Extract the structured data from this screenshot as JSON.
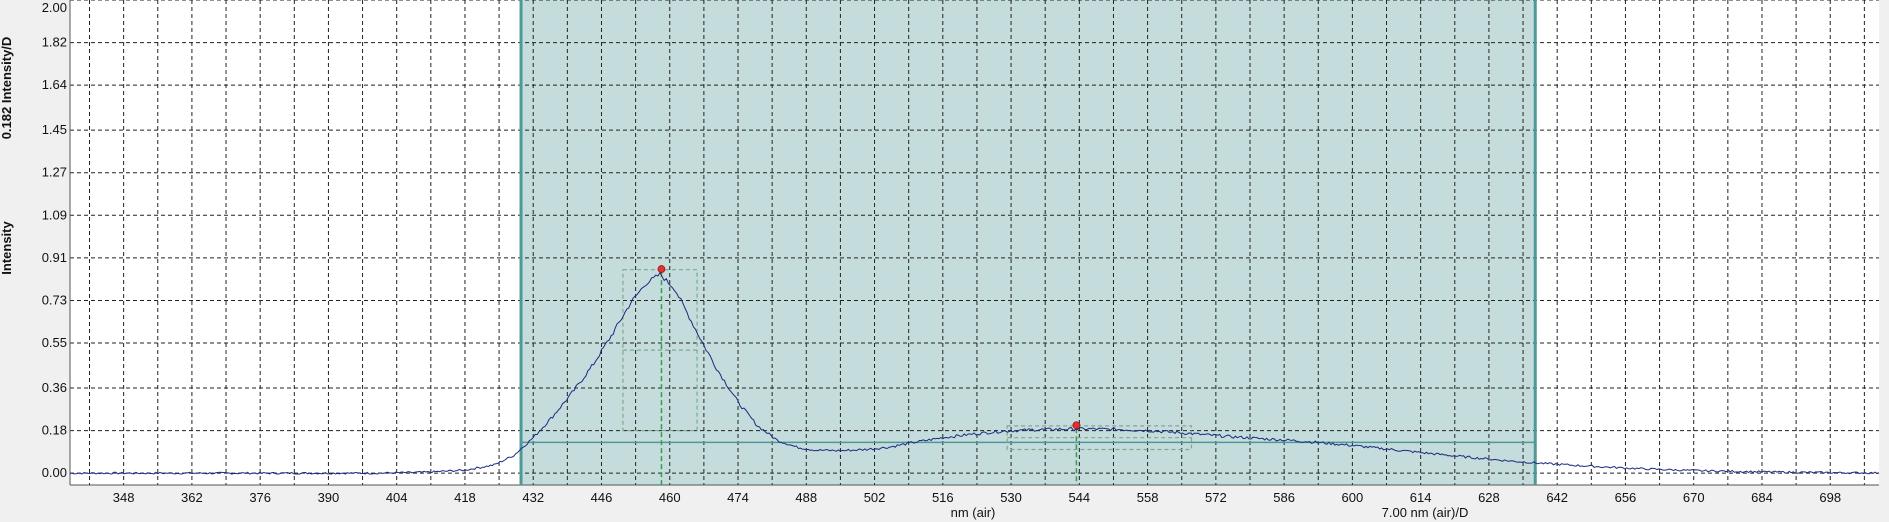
{
  "chart_data": {
    "type": "line",
    "ylabel_left": "Intensity",
    "ylabel_right": "0.182 Intensity/D",
    "xlabel": "nm (air)",
    "xlabel_scale": "7.00 nm (air)/D",
    "xlim": [
      337,
      708
    ],
    "ylim": [
      -0.05,
      2.0
    ],
    "y_ticks": [
      "2.00",
      "1.82",
      "1.64",
      "1.45",
      "1.27",
      "1.09",
      "0.91",
      "0.73",
      "0.55",
      "0.36",
      "0.18",
      "0.00"
    ],
    "y_tick_values": [
      2.0,
      1.82,
      1.64,
      1.45,
      1.27,
      1.09,
      0.91,
      0.73,
      0.55,
      0.36,
      0.18,
      0.0
    ],
    "x_ticks": [
      "348",
      "362",
      "376",
      "390",
      "404",
      "418",
      "432",
      "446",
      "460",
      "474",
      "488",
      "502",
      "516",
      "530",
      "544",
      "558",
      "572",
      "586",
      "600",
      "614",
      "628",
      "642",
      "656",
      "670",
      "684",
      "698"
    ],
    "x_tick_values": [
      348,
      362,
      376,
      390,
      404,
      418,
      432,
      446,
      460,
      474,
      488,
      502,
      516,
      530,
      544,
      558,
      572,
      586,
      600,
      614,
      628,
      642,
      656,
      670,
      684,
      698
    ],
    "grid": true,
    "region": {
      "x_start": 429.5,
      "x_end": 637.5,
      "baseline_y": 0.13
    },
    "peaks": [
      {
        "x": 458.3,
        "y": 0.85,
        "box_x": [
          450.4,
          465.6
        ],
        "box_y": [
          0.18,
          0.86
        ],
        "box_mid_y": 0.52
      },
      {
        "x": 543.4,
        "y": 0.19,
        "box_x": [
          529.2,
          567.0
        ],
        "box_y": [
          0.1,
          0.2
        ],
        "box_mid_y": 0.15
      }
    ],
    "series": [
      {
        "color": "#1a2a80",
        "x": [
          337,
          380,
          400,
          410,
          418,
          424,
          428,
          432,
          436,
          440,
          444,
          448,
          452,
          455,
          458,
          461,
          464,
          467,
          470,
          474,
          478,
          482,
          486,
          490,
          495,
          500,
          505,
          510,
          516,
          522,
          528,
          534,
          540,
          546,
          552,
          558,
          564,
          570,
          576,
          582,
          588,
          594,
          600,
          608,
          616,
          624,
          632,
          640,
          650,
          660,
          670,
          680,
          690,
          700,
          708
        ],
        "y": [
          0.0,
          0.0,
          0.0,
          0.004,
          0.013,
          0.035,
          0.075,
          0.15,
          0.24,
          0.34,
          0.45,
          0.58,
          0.72,
          0.8,
          0.84,
          0.78,
          0.66,
          0.54,
          0.43,
          0.3,
          0.2,
          0.14,
          0.11,
          0.097,
          0.095,
          0.1,
          0.11,
          0.13,
          0.15,
          0.165,
          0.177,
          0.183,
          0.186,
          0.187,
          0.185,
          0.18,
          0.172,
          0.162,
          0.153,
          0.145,
          0.138,
          0.128,
          0.117,
          0.1,
          0.083,
          0.067,
          0.052,
          0.04,
          0.028,
          0.018,
          0.011,
          0.007,
          0.004,
          0.002,
          0.001
        ]
      }
    ],
    "colors": {
      "region_fill": "#c5dcdc",
      "region_edge": "#4f9898",
      "grid": "#222222",
      "series": "#1a2a80",
      "peak_marker": "#dd3333",
      "peak_line": "#3a9a55",
      "peak_box": "#7fa88f"
    }
  }
}
